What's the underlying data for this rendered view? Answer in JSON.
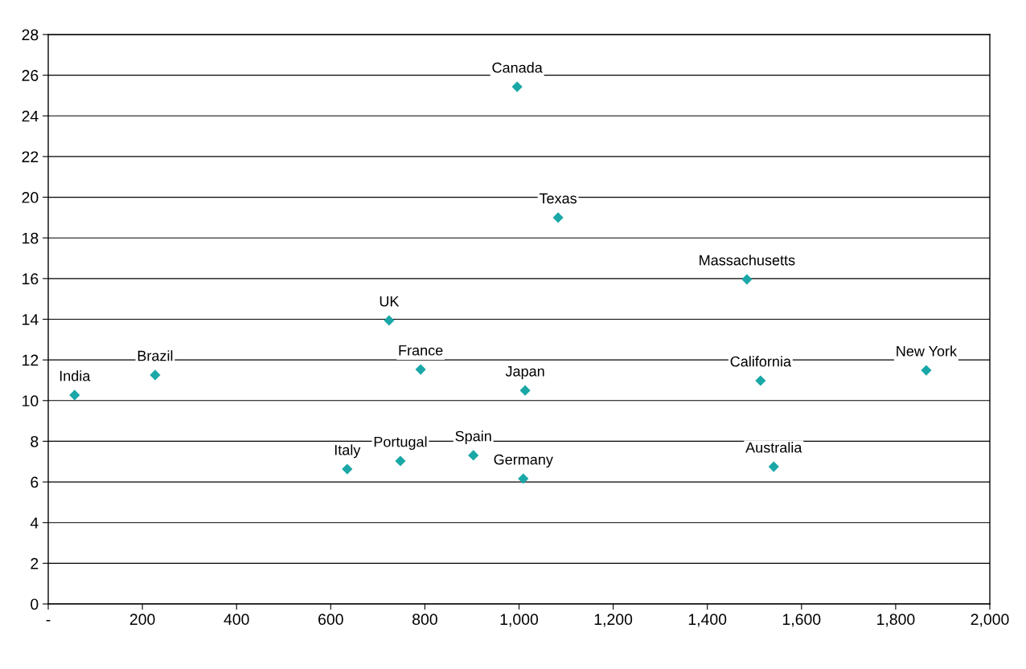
{
  "chart_data": {
    "type": "scatter",
    "marker": "diamond",
    "grid": "y",
    "color": "#1aa7a7",
    "x": [
      56,
      227,
      635,
      748,
      724,
      791,
      903,
      996,
      1009,
      1013,
      1083,
      1484,
      1513,
      1541,
      1865
    ],
    "values": [
      10.27,
      11.26,
      6.63,
      7.03,
      13.94,
      11.53,
      7.31,
      25.43,
      6.16,
      10.5,
      19.0,
      15.96,
      10.98,
      6.75,
      11.49
    ],
    "xlim": [
      0,
      2000
    ],
    "ylim": [
      0,
      28
    ],
    "xticks": [
      {
        "value": 0,
        "label": "-"
      },
      200,
      400,
      600,
      800,
      {
        "value": 1000,
        "label": "1,000"
      },
      {
        "value": 1200,
        "label": "1,200"
      },
      {
        "value": 1400,
        "label": "1,400"
      },
      {
        "value": 1600,
        "label": "1,600"
      },
      {
        "value": 1800,
        "label": "1,800"
      },
      {
        "value": 2000,
        "label": "2,000"
      }
    ],
    "yticks": [
      0,
      2,
      4,
      6,
      8,
      10,
      12,
      14,
      16,
      18,
      20,
      22,
      24,
      26,
      28
    ],
    "annotations": [
      {
        "text": "India",
        "x": 56,
        "y": 10.27
      },
      {
        "text": "Brazil",
        "x": 227,
        "y": 11.26
      },
      {
        "text": "Italy",
        "x": 635,
        "y": 6.63
      },
      {
        "text": "Portugal",
        "x": 748,
        "y": 7.03
      },
      {
        "text": "UK",
        "x": 724,
        "y": 13.94
      },
      {
        "text": "France",
        "x": 791,
        "y": 11.53
      },
      {
        "text": "Spain",
        "x": 903,
        "y": 7.31
      },
      {
        "text": "Canada",
        "x": 996,
        "y": 25.43
      },
      {
        "text": "Germany",
        "x": 1009,
        "y": 6.16
      },
      {
        "text": "Japan",
        "x": 1013,
        "y": 10.5
      },
      {
        "text": "Texas",
        "x": 1083,
        "y": 19.0
      },
      {
        "text": "Massachusetts",
        "x": 1484,
        "y": 15.96
      },
      {
        "text": "California",
        "x": 1513,
        "y": 10.98
      },
      {
        "text": "Australia",
        "x": 1541,
        "y": 6.75
      },
      {
        "text": "New York",
        "x": 1865,
        "y": 11.49
      }
    ]
  }
}
